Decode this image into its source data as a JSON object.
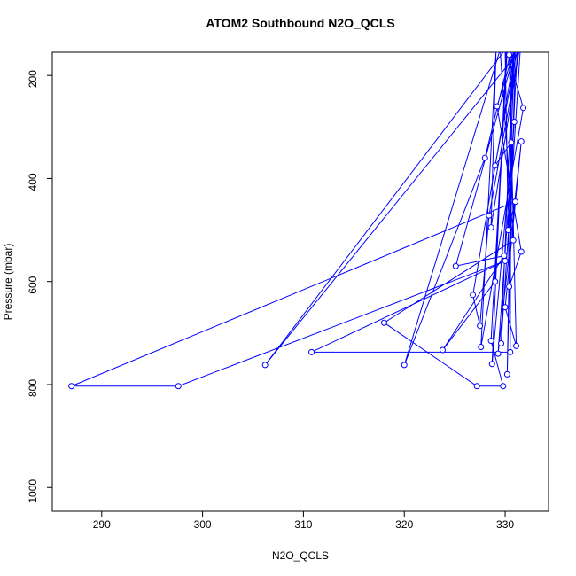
{
  "chart_data": {
    "type": "line",
    "title": "ATOM2 Southbound N2O_QCLS",
    "x_label": "N2O_QCLS",
    "y_label": "Pressure (mbar)",
    "color": "#0000ff",
    "x": [
      331.0,
      330.2,
      330.8,
      329.6,
      331.5,
      306.2,
      330.0,
      330.4,
      331.6,
      329.2,
      330.9,
      330.6,
      329.0,
      331.2,
      330.3,
      331.0,
      287.0,
      297.6,
      330.0,
      310.8,
      330.5,
      330.6,
      328.0,
      320.0,
      329.5,
      330.8,
      318.0,
      327.2,
      329.8,
      328.6,
      330.2,
      329.0,
      323.8,
      329.9,
      325.1,
      331.0,
      326.8,
      327.5,
      328.4,
      331.4,
      328.6,
      329.1,
      327.6,
      331.8,
      330.1,
      328.7,
      330.9,
      329.3,
      331.6,
      330.0,
      331.1,
      330.4
    ],
    "values": [
      150,
      780,
      150,
      720,
      150,
      762,
      150,
      610,
      542,
      260,
      150,
      330,
      375,
      150,
      500,
      445,
      803,
      803,
      560,
      737,
      737,
      150,
      360,
      762,
      150,
      520,
      680,
      803,
      803,
      715,
      150,
      600,
      733,
      550,
      570,
      150,
      626,
      686,
      472,
      150,
      495,
      150,
      727,
      263,
      150,
      760,
      290,
      740,
      328,
      650,
      725,
      160
    ],
    "xlim": [
      285.1,
      334.3
    ],
    "ylim": [
      1046,
      155
    ],
    "xticks": [
      290,
      300,
      310,
      320,
      330
    ],
    "yticks": [
      200,
      400,
      600,
      800,
      1000
    ]
  }
}
